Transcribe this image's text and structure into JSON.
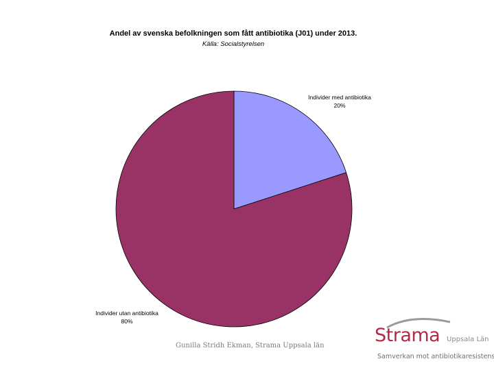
{
  "chart_data": {
    "type": "pie",
    "title": "Andel av svenska befolkningen som fått antibiotika (J01) under 2013.",
    "subtitle": "Källa: Socialstyrelsen",
    "slices": [
      {
        "name": "Individer med antibiotika",
        "value": 20,
        "label": "20%",
        "color": "#9999ff"
      },
      {
        "name": "Individer utan antibiotika",
        "value": 80,
        "label": "80%",
        "color": "#993366"
      }
    ]
  },
  "footer": {
    "author": "Gunilla Stridh Ekman, Strama Uppsala län"
  },
  "logo": {
    "name": "Strama",
    "region": "Uppsala Län",
    "tagline": "Samverkan mot antibiotikaresistens",
    "color": "#b22a45"
  }
}
